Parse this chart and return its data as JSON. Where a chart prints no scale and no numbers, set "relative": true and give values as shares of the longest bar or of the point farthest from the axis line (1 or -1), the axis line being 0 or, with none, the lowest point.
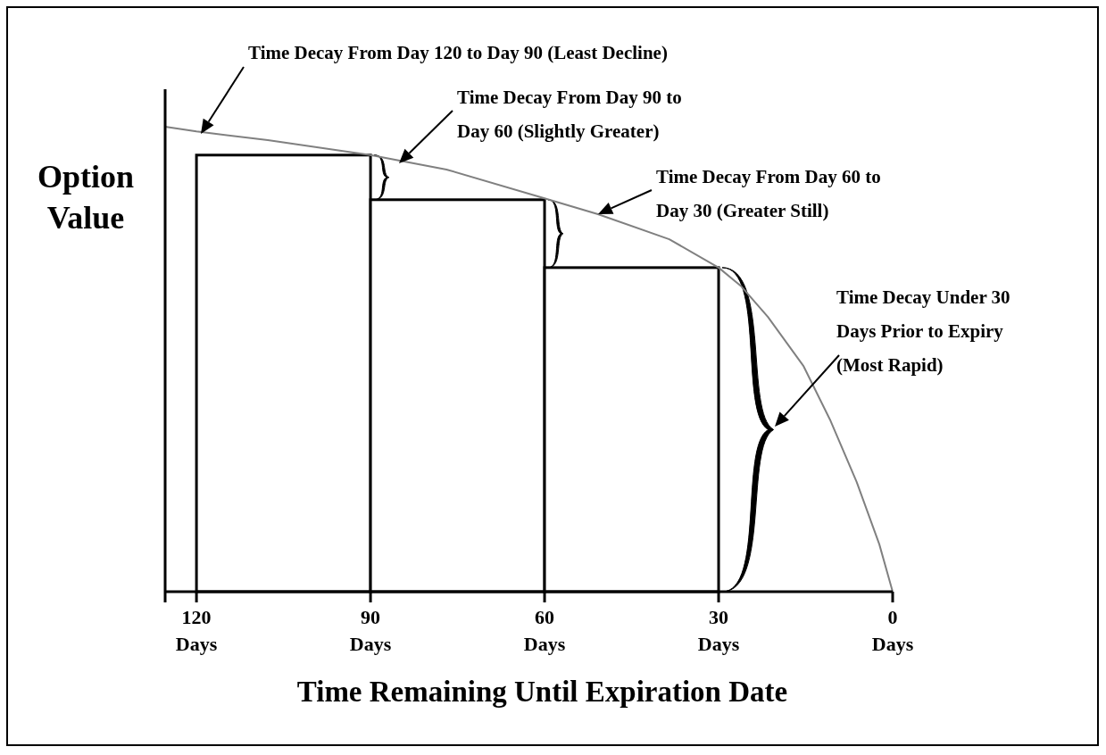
{
  "chart_data": {
    "type": "histogram",
    "relative": true,
    "xlabel": "Time Remaining Until Expiration Date",
    "ylabel": "Option Value",
    "bins": [
      120,
      90,
      60,
      30
    ],
    "values": [
      0.939,
      0.843,
      0.697
    ],
    "color": "#ffffff",
    "series": [
      {
        "type": "line",
        "color": "#808080",
        "x": [
          125.4,
          120,
          107.7,
          90,
          76.9,
          60,
          50.8,
          38.5,
          30,
          26.2,
          21.5,
          15.4,
          10.8,
          6.2,
          2.3,
          0
        ],
        "values": [
          1.0,
          0.99,
          0.971,
          0.939,
          0.908,
          0.846,
          0.812,
          0.758,
          0.697,
          0.658,
          0.591,
          0.486,
          0.37,
          0.236,
          0.102,
          0
        ]
      }
    ],
    "xlim": [
      125.4,
      0
    ],
    "xticks": [
      {
        "value": 120,
        "label": "120 Days"
      },
      {
        "value": 90,
        "label": "90 Days"
      },
      {
        "value": 60,
        "label": "60 Days"
      },
      {
        "value": 30,
        "label": "30 Days"
      },
      {
        "value": 0,
        "label": "0 Days"
      }
    ],
    "annotations": [
      "Time Decay From Day 120 to Day 90 (Least Decline)",
      "Time Decay From Day 90 to\nDay 60 (Slightly Greater)",
      "Time Decay From Day 60 to\nDay 30 (Greater Still)",
      "Time Decay Under 30\nDays Prior to Expiry\n(Most Rapid)"
    ]
  }
}
